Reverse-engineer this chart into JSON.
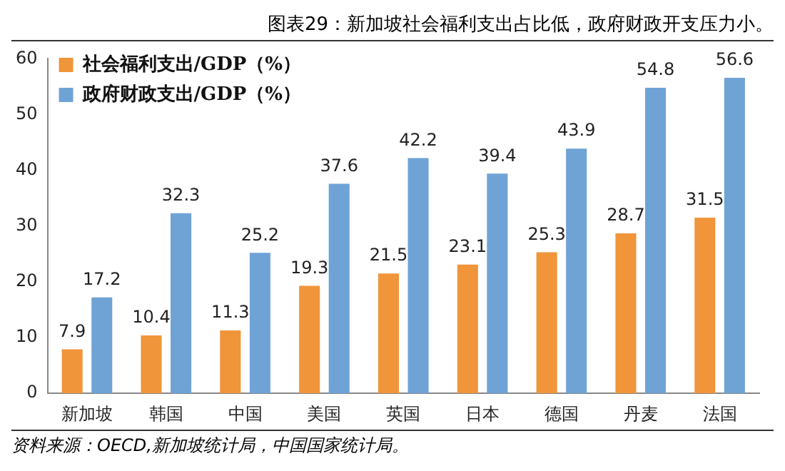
{
  "chart_data": {
    "type": "bar",
    "title": "图表29：新加坡社会福利支出占比低，政府财政开支压力小。",
    "categories": [
      "新加坡",
      "韩国",
      "中国",
      "美国",
      "英国",
      "日本",
      "德国",
      "丹麦",
      "法国"
    ],
    "series": [
      {
        "name": "社会福利支出/GDP（%）",
        "color": "#f0953a",
        "values": [
          7.9,
          10.4,
          11.3,
          19.3,
          21.5,
          23.1,
          25.3,
          28.7,
          31.5
        ]
      },
      {
        "name": "政府财政支出/GDP（%）",
        "color": "#6fa3d6",
        "values": [
          17.2,
          32.3,
          25.2,
          37.6,
          42.2,
          39.4,
          43.9,
          54.8,
          56.6
        ]
      }
    ],
    "ylim": [
      0,
      60
    ],
    "yticks": [
      0,
      10,
      20,
      30,
      40,
      50,
      60
    ],
    "grid": false,
    "legend": "top left",
    "data_labels": true,
    "annotations": [
      "资料来源：OECD,新加坡统计局，中国国家统计局。"
    ]
  }
}
